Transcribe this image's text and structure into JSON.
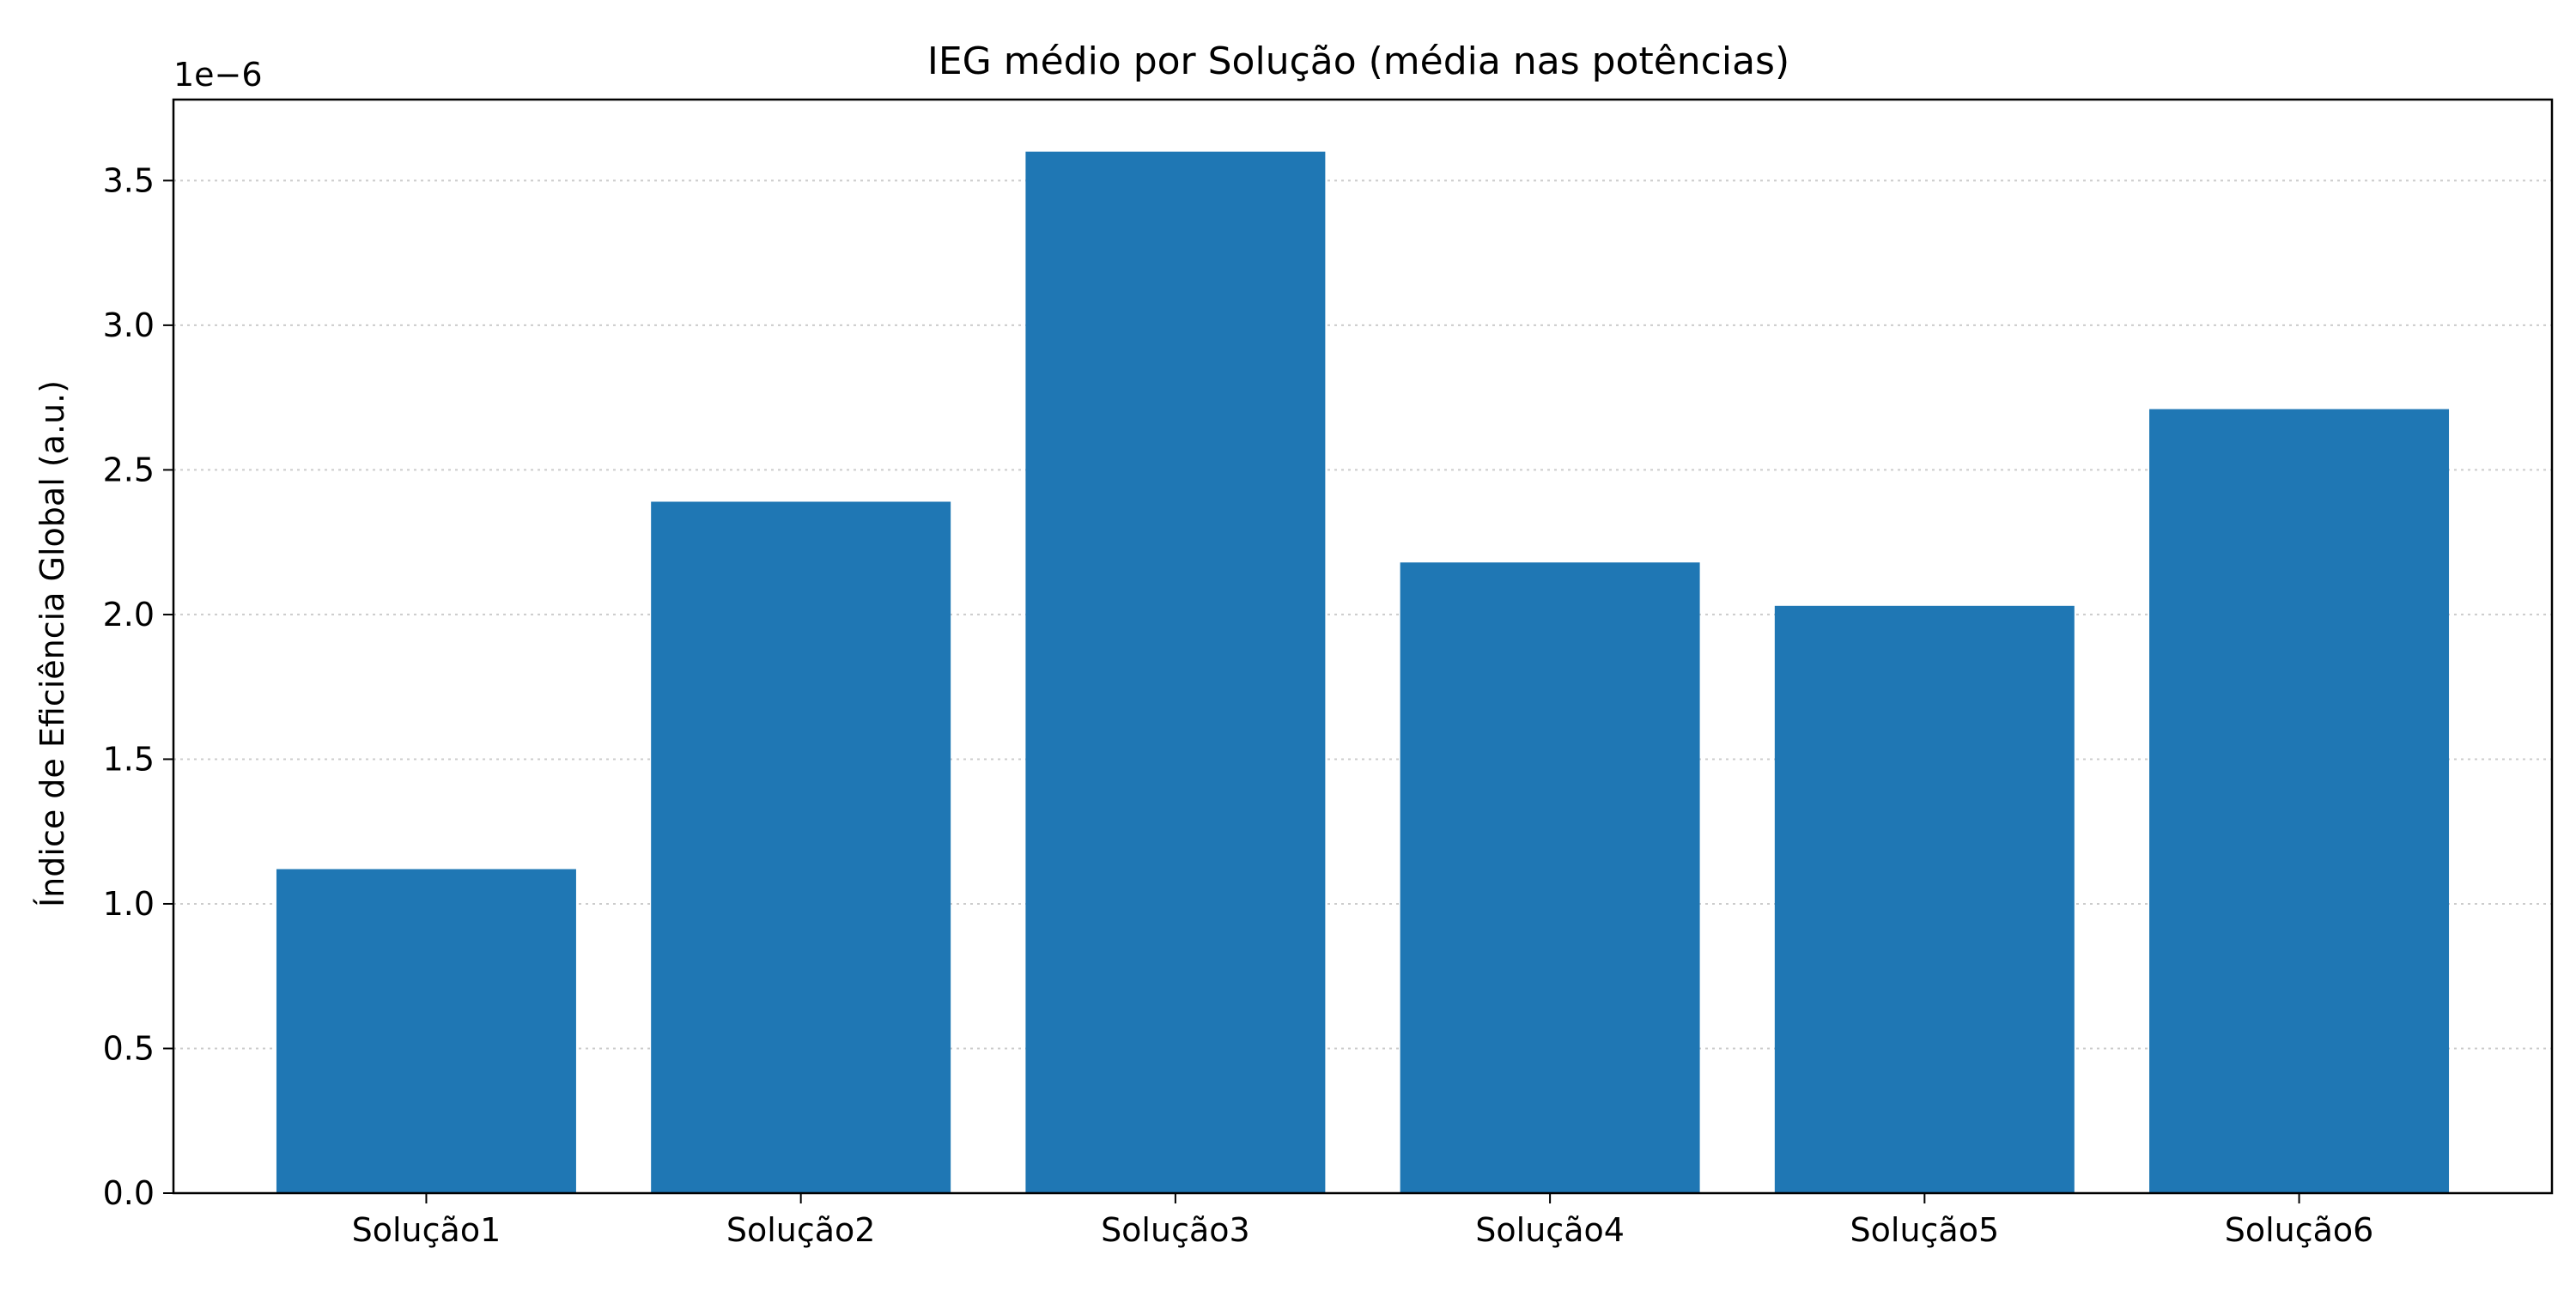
{
  "chart_data": {
    "type": "bar",
    "title": "IEG médio por Solução (média nas potências)",
    "xlabel": "",
    "ylabel": "Índice de Eficiência Global (a.u.)",
    "y_multiplier_label": "1e−6",
    "categories": [
      "Solução1",
      "Solução2",
      "Solução3",
      "Solução4",
      "Solução5",
      "Solução6"
    ],
    "values": [
      1.12e-06,
      2.39e-06,
      3.6e-06,
      2.18e-06,
      2.03e-06,
      2.71e-06
    ],
    "ylim": [
      0,
      3.78e-06
    ],
    "yticks": [
      0,
      5e-07,
      1e-06,
      1.5e-06,
      2e-06,
      2.5e-06,
      3e-06,
      3.5e-06
    ],
    "ytick_labels": [
      "0.0",
      "0.5",
      "1.0",
      "1.5",
      "2.0",
      "2.5",
      "3.0",
      "3.5"
    ],
    "grid": {
      "y": true,
      "x": false,
      "style": "dotted"
    },
    "legend": "none",
    "bar_color": "#1f77b4",
    "grid_color": "#cccccc"
  }
}
